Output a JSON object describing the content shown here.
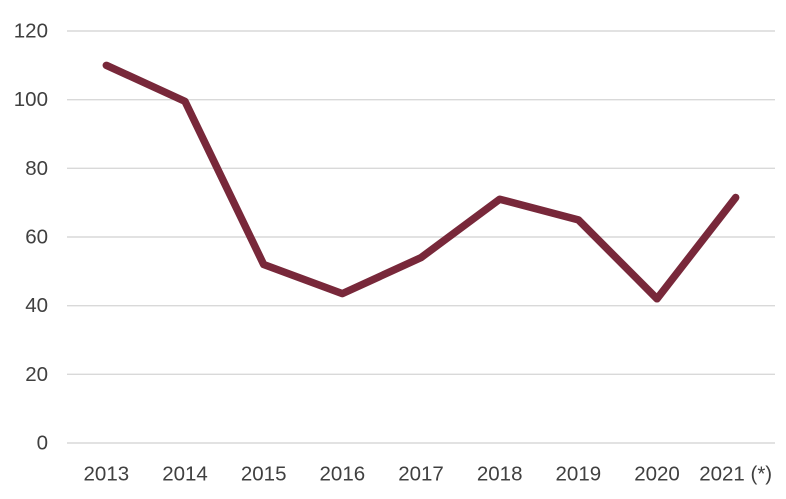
{
  "chart_data": {
    "type": "line",
    "title": "",
    "xlabel": "",
    "ylabel": "",
    "categories": [
      "2013",
      "2014",
      "2015",
      "2016",
      "2017",
      "2018",
      "2019",
      "2020",
      "2021 (*)"
    ],
    "series": [
      {
        "name": "value",
        "values": [
          110,
          99.5,
          52,
          43.5,
          54,
          71,
          65,
          42,
          71.5
        ]
      }
    ],
    "ylim": [
      0,
      120
    ],
    "yticks": [
      0,
      20,
      40,
      60,
      80,
      100,
      120
    ],
    "grid": true,
    "legend_position": "none",
    "line_color": "#78283A",
    "gridline_color": "#D9D9D9",
    "tick_label_color": "#404040",
    "background_color": "#FFFFFF"
  }
}
